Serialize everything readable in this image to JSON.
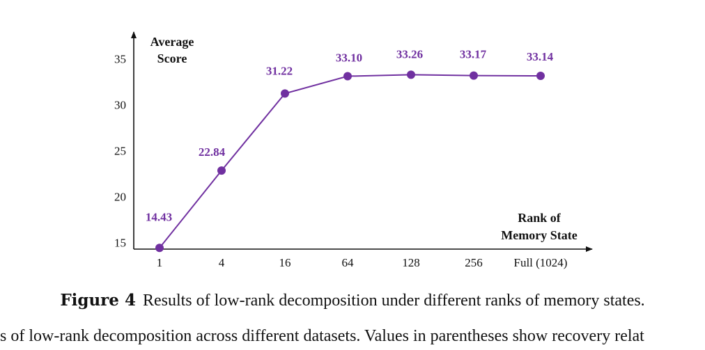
{
  "chart_data": {
    "type": "line",
    "title": "",
    "ylabel_lines": [
      "Average",
      "Score"
    ],
    "xlabel_lines": [
      "Rank of",
      "Memory State"
    ],
    "categories": [
      "1",
      "4",
      "16",
      "64",
      "128",
      "256",
      "Full (1024)"
    ],
    "values": [
      14.43,
      22.84,
      31.22,
      33.1,
      33.26,
      33.17,
      33.14
    ],
    "data_labels": [
      "14.43",
      "22.84",
      "31.22",
      "33.10",
      "33.26",
      "33.17",
      "33.14"
    ],
    "yticks": [
      15,
      20,
      25,
      30,
      35
    ],
    "ylim": [
      14.3,
      37
    ],
    "grid": false,
    "legend": "none",
    "line_color": "#7030A0",
    "label_color": "#7030A0"
  },
  "caption": {
    "figure_number": "Figure 4",
    "text": "Results of low-rank decomposition under different ranks of memory states."
  },
  "cut_text": "s of low-rank decomposition across different datasets. Values in parentheses show recovery relat"
}
